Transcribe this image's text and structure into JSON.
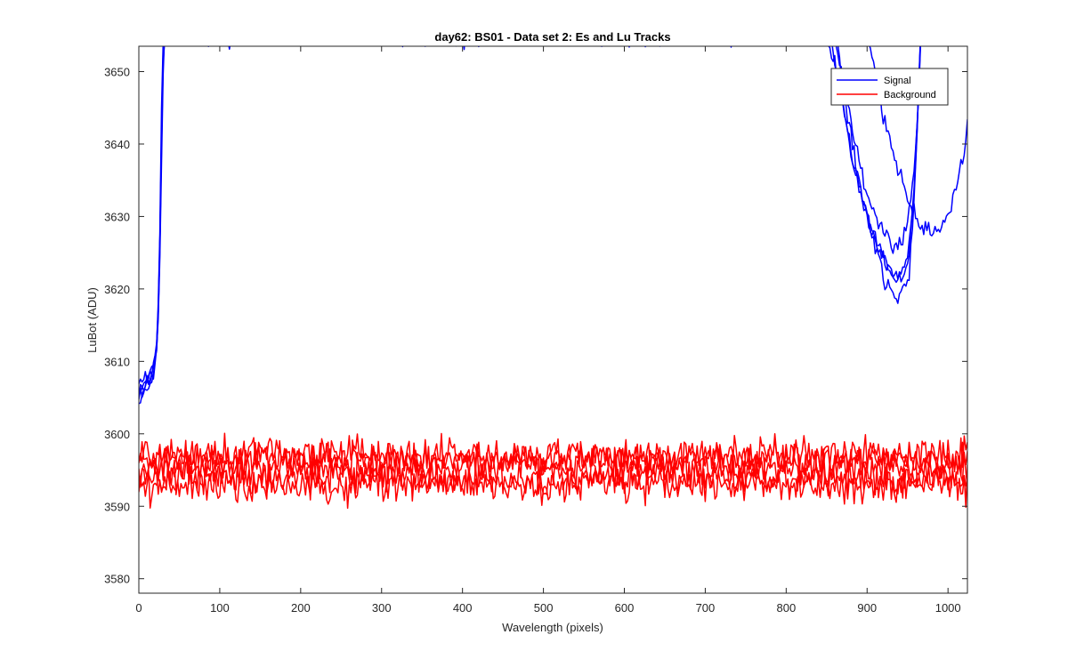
{
  "chart_data": {
    "type": "line",
    "title": "day62: BS01 - Data set 2: Es and Lu Tracks",
    "xlabel": "Wavelength (pixels)",
    "ylabel": "LuBot (ADU)",
    "xlim": [
      0,
      1024
    ],
    "ylim": [
      3578,
      3653.5
    ],
    "x_ticks": [
      0,
      100,
      200,
      300,
      400,
      500,
      600,
      700,
      800,
      900,
      1000
    ],
    "y_ticks": [
      3580,
      3590,
      3600,
      3610,
      3620,
      3630,
      3640,
      3650
    ],
    "grid": false,
    "legend_position": "top-right",
    "legend": [
      "Signal",
      "Background"
    ],
    "x_step": 2,
    "series": [
      {
        "name": "Signal",
        "color": "#0000ff",
        "tracks": [
          {
            "noise": 1.0,
            "points": [
              [
                0,
                3605
              ],
              [
                6,
                3606
              ],
              [
                12,
                3606.5
              ],
              [
                18,
                3608
              ],
              [
                22,
                3611
              ],
              [
                25,
                3618
              ],
              [
                27,
                3630
              ],
              [
                29,
                3645
              ],
              [
                31,
                3655
              ],
              [
                860,
                3655
              ],
              [
                870,
                3649
              ],
              [
                880,
                3643
              ],
              [
                890,
                3638
              ],
              [
                900,
                3633
              ],
              [
                910,
                3630
              ],
              [
                920,
                3628
              ],
              [
                930,
                3626
              ],
              [
                940,
                3626
              ],
              [
                950,
                3629
              ],
              [
                958,
                3636
              ],
              [
                963,
                3645
              ],
              [
                967,
                3655
              ]
            ]
          },
          {
            "noise": 1.1,
            "points": [
              [
                0,
                3605.5
              ],
              [
                6,
                3606.5
              ],
              [
                12,
                3607
              ],
              [
                18,
                3608.5
              ],
              [
                22,
                3611.5
              ],
              [
                25,
                3619
              ],
              [
                27,
                3632
              ],
              [
                29,
                3648
              ],
              [
                31,
                3655
              ],
              [
                850,
                3655
              ],
              [
                860,
                3651
              ],
              [
                870,
                3645
              ],
              [
                880,
                3639
              ],
              [
                890,
                3634
              ],
              [
                900,
                3630
              ],
              [
                910,
                3627
              ],
              [
                920,
                3624
              ],
              [
                930,
                3622
              ],
              [
                940,
                3622
              ],
              [
                950,
                3624
              ],
              [
                958,
                3634
              ],
              [
                963,
                3645
              ],
              [
                966,
                3655
              ]
            ]
          },
          {
            "noise": 1.1,
            "points": [
              [
                0,
                3606
              ],
              [
                6,
                3607
              ],
              [
                12,
                3607.5
              ],
              [
                18,
                3609
              ],
              [
                22,
                3612
              ],
              [
                25,
                3620
              ],
              [
                27,
                3634
              ],
              [
                29,
                3650
              ],
              [
                31,
                3655
              ],
              [
                855,
                3655
              ],
              [
                865,
                3648
              ],
              [
                875,
                3642
              ],
              [
                885,
                3636
              ],
              [
                895,
                3632
              ],
              [
                905,
                3628
              ],
              [
                915,
                3625
              ],
              [
                925,
                3623
              ],
              [
                935,
                3621
              ],
              [
                945,
                3621
              ],
              [
                952,
                3625
              ],
              [
                958,
                3634
              ],
              [
                963,
                3645
              ],
              [
                966,
                3655
              ]
            ]
          },
          {
            "noise": 1.2,
            "points": [
              [
                0,
                3606.5
              ],
              [
                6,
                3607.5
              ],
              [
                12,
                3608
              ],
              [
                18,
                3609.5
              ],
              [
                22,
                3612.5
              ],
              [
                25,
                3621
              ],
              [
                27,
                3636
              ],
              [
                29,
                3652
              ],
              [
                31,
                3655
              ],
              [
                862,
                3655
              ],
              [
                872,
                3647
              ],
              [
                882,
                3640
              ],
              [
                892,
                3634
              ],
              [
                902,
                3629
              ],
              [
                912,
                3625
              ],
              [
                922,
                3621
              ],
              [
                932,
                3619
              ],
              [
                942,
                3619
              ],
              [
                952,
                3622
              ],
              [
                958,
                3632
              ],
              [
                963,
                3644
              ],
              [
                966,
                3655
              ]
            ]
          },
          {
            "noise": 1.0,
            "points": [
              [
                0,
                3604.5
              ],
              [
                6,
                3606
              ],
              [
                12,
                3607
              ],
              [
                18,
                3608.5
              ],
              [
                22,
                3612
              ],
              [
                25,
                3619.5
              ],
              [
                27,
                3633
              ],
              [
                29,
                3649
              ],
              [
                31,
                3655
              ],
              [
                900,
                3655
              ],
              [
                910,
                3650
              ],
              [
                920,
                3644
              ],
              [
                930,
                3640
              ],
              [
                940,
                3636
              ],
              [
                950,
                3633
              ],
              [
                960,
                3630
              ],
              [
                970,
                3628
              ],
              [
                980,
                3628
              ],
              [
                990,
                3629
              ],
              [
                1000,
                3630
              ],
              [
                1010,
                3634
              ],
              [
                1018,
                3638
              ],
              [
                1024,
                3643
              ]
            ]
          }
        ]
      },
      {
        "name": "Background",
        "color": "#ff0000",
        "tracks": [
          {
            "noise": 2.2,
            "points": [
              [
                0,
                3597
              ],
              [
                1024,
                3597
              ]
            ]
          },
          {
            "noise": 2.2,
            "points": [
              [
                0,
                3594
              ],
              [
                1024,
                3594
              ]
            ]
          },
          {
            "noise": 2.2,
            "points": [
              [
                0,
                3595.5
              ],
              [
                1024,
                3595.5
              ]
            ]
          },
          {
            "noise": 2.2,
            "points": [
              [
                0,
                3596.5
              ],
              [
                1024,
                3596.5
              ]
            ]
          },
          {
            "noise": 2.2,
            "points": [
              [
                0,
                3593
              ],
              [
                1024,
                3593
              ]
            ]
          }
        ]
      }
    ]
  }
}
